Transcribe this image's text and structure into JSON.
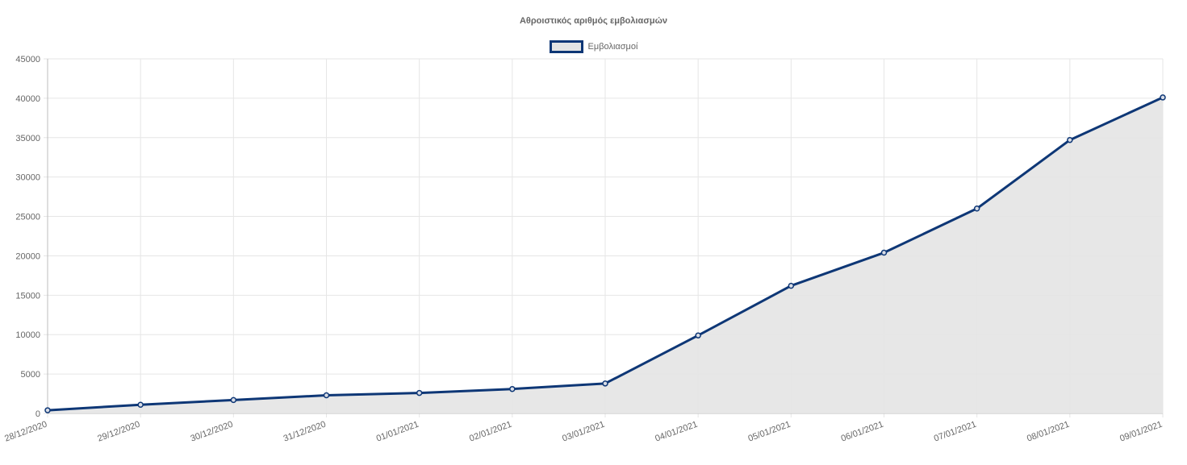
{
  "chart_data": {
    "type": "area",
    "title": "Αθροιστικός αριθμός εμβολιασμών",
    "xlabel": "",
    "ylabel": "",
    "categories": [
      "28/12/2020",
      "29/12/2020",
      "30/12/2020",
      "31/12/2020",
      "01/01/2021",
      "02/01/2021",
      "03/01/2021",
      "04/01/2021",
      "05/01/2021",
      "06/01/2021",
      "07/01/2021",
      "08/01/2021",
      "09/01/2021"
    ],
    "series": [
      {
        "name": "Εμβολιασμοί",
        "values": [
          400,
          1100,
          1700,
          2300,
          2600,
          3100,
          3800,
          9900,
          16200,
          20400,
          26000,
          34700,
          40100
        ]
      }
    ],
    "ylim": [
      0,
      45000
    ],
    "yticks": [
      "0",
      "5000",
      "10000",
      "15000",
      "20000",
      "25000",
      "30000",
      "35000",
      "40000",
      "45000"
    ],
    "grid": true,
    "legend_position": "top-center",
    "colors": {
      "line": "#0e3776",
      "fill": "#e4e4e4",
      "grid": "#e6e6e6",
      "text": "#666666"
    }
  }
}
